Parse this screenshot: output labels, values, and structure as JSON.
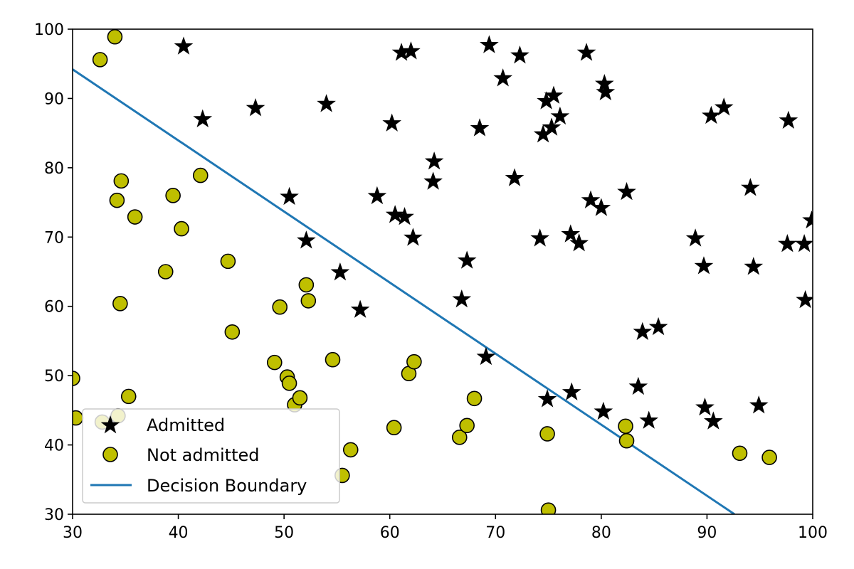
{
  "chart_data": {
    "type": "scatter",
    "title": "",
    "xlabel": "",
    "ylabel": "",
    "xlim": [
      30,
      100
    ],
    "ylim": [
      30,
      100
    ],
    "xticks": [
      "30",
      "40",
      "50",
      "60",
      "70",
      "80",
      "90",
      "100"
    ],
    "yticks": [
      "30",
      "40",
      "50",
      "60",
      "70",
      "80",
      "90",
      "100"
    ],
    "grid": false,
    "legend_position": "lower-left",
    "colors": {
      "admitted": "#000000",
      "not_admitted": "#bfbf00",
      "boundary": "#1f77b4"
    },
    "series": [
      {
        "name": "Admitted",
        "marker": "star",
        "points": [
          [
            40.5,
            97.5
          ],
          [
            42.3,
            87.0
          ],
          [
            47.3,
            88.6
          ],
          [
            50.5,
            75.8
          ],
          [
            52.1,
            69.5
          ],
          [
            54.0,
            89.2
          ],
          [
            55.3,
            64.9
          ],
          [
            57.2,
            59.5
          ],
          [
            58.8,
            75.9
          ],
          [
            60.2,
            86.4
          ],
          [
            60.5,
            73.2
          ],
          [
            61.4,
            72.9
          ],
          [
            62.2,
            69.9
          ],
          [
            61.1,
            96.6
          ],
          [
            62.0,
            96.8
          ],
          [
            64.2,
            80.9
          ],
          [
            64.1,
            78.0
          ],
          [
            66.8,
            61.0
          ],
          [
            67.3,
            66.6
          ],
          [
            68.5,
            85.7
          ],
          [
            69.1,
            52.7
          ],
          [
            69.4,
            97.7
          ],
          [
            70.7,
            92.9
          ],
          [
            71.8,
            78.5
          ],
          [
            72.3,
            96.2
          ],
          [
            74.2,
            69.8
          ],
          [
            74.5,
            84.8
          ],
          [
            74.8,
            89.6
          ],
          [
            75.5,
            90.4
          ],
          [
            75.3,
            85.8
          ],
          [
            76.1,
            87.4
          ],
          [
            74.9,
            46.6
          ],
          [
            77.1,
            70.4
          ],
          [
            77.2,
            47.6
          ],
          [
            77.9,
            69.1
          ],
          [
            78.6,
            96.6
          ],
          [
            79.0,
            75.3
          ],
          [
            80.0,
            74.2
          ],
          [
            80.3,
            92.1
          ],
          [
            80.4,
            90.9
          ],
          [
            80.2,
            44.8
          ],
          [
            82.4,
            76.5
          ],
          [
            83.5,
            48.4
          ],
          [
            83.9,
            56.3
          ],
          [
            84.5,
            43.5
          ],
          [
            85.4,
            57.0
          ],
          [
            88.9,
            69.8
          ],
          [
            89.7,
            65.8
          ],
          [
            89.8,
            45.4
          ],
          [
            90.4,
            87.5
          ],
          [
            90.6,
            43.4
          ],
          [
            91.6,
            88.7
          ],
          [
            94.1,
            77.1
          ],
          [
            94.4,
            65.7
          ],
          [
            94.9,
            45.7
          ],
          [
            97.6,
            69.0
          ],
          [
            97.7,
            86.8
          ],
          [
            99.2,
            69.0
          ],
          [
            99.3,
            60.9
          ],
          [
            99.9,
            72.4
          ]
        ]
      },
      {
        "name": "Not admitted",
        "marker": "circle",
        "points": [
          [
            30.0,
            49.6
          ],
          [
            30.3,
            43.9
          ],
          [
            32.6,
            95.6
          ],
          [
            32.8,
            43.3
          ],
          [
            34.0,
            98.9
          ],
          [
            34.2,
            75.3
          ],
          [
            34.3,
            44.2
          ],
          [
            34.5,
            60.4
          ],
          [
            34.6,
            78.1
          ],
          [
            35.3,
            47.0
          ],
          [
            35.9,
            72.9
          ],
          [
            38.8,
            65.0
          ],
          [
            39.5,
            76.0
          ],
          [
            40.3,
            71.2
          ],
          [
            42.1,
            78.9
          ],
          [
            44.7,
            66.5
          ],
          [
            45.1,
            56.3
          ],
          [
            49.1,
            51.9
          ],
          [
            49.6,
            59.9
          ],
          [
            50.3,
            49.8
          ],
          [
            50.5,
            48.9
          ],
          [
            51.0,
            45.8
          ],
          [
            51.5,
            46.8
          ],
          [
            52.1,
            63.1
          ],
          [
            52.3,
            60.8
          ],
          [
            54.6,
            52.3
          ],
          [
            55.5,
            35.6
          ],
          [
            56.3,
            39.3
          ],
          [
            60.4,
            42.5
          ],
          [
            61.8,
            50.3
          ],
          [
            62.3,
            52.0
          ],
          [
            66.6,
            41.1
          ],
          [
            67.3,
            42.8
          ],
          [
            68.0,
            46.7
          ],
          [
            74.9,
            41.6
          ],
          [
            75.0,
            30.6
          ],
          [
            82.3,
            42.7
          ],
          [
            82.4,
            40.6
          ],
          [
            93.1,
            38.8
          ],
          [
            95.9,
            38.2
          ]
        ]
      }
    ],
    "decision_boundary": {
      "name": "Decision Boundary",
      "x": [
        30,
        92.6
      ],
      "y": [
        94.2,
        30
      ]
    }
  }
}
